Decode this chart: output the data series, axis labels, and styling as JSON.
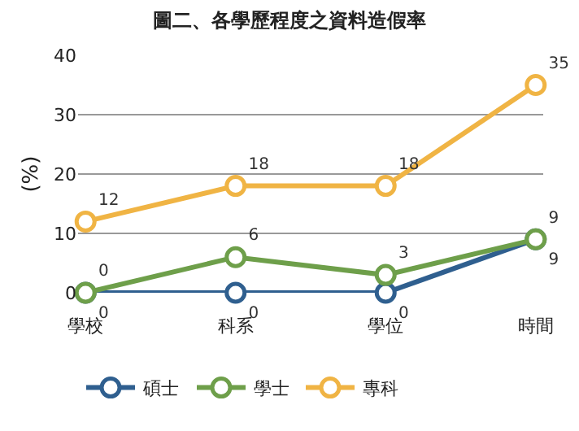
{
  "chart_data": {
    "type": "line",
    "title": "圖二、各學歷程度之資料造假率",
    "ylabel": "(%)",
    "categories": [
      "學校",
      "科系",
      "學位",
      "時間"
    ],
    "series": [
      {
        "name": "碩士",
        "color": "#2f5f8f",
        "values": [
          0,
          0,
          0,
          9
        ]
      },
      {
        "name": "學士",
        "color": "#6e9f4a",
        "values": [
          0,
          6,
          3,
          9
        ]
      },
      {
        "name": "專科",
        "color": "#f0b444",
        "values": [
          12,
          18,
          18,
          35
        ]
      }
    ],
    "ylim": [
      0,
      40
    ],
    "yticks": [
      0,
      10,
      20,
      30,
      40
    ],
    "grid": "y",
    "legend": "bottom",
    "marker": "circle",
    "line_style": "solid",
    "data_labels": true
  }
}
